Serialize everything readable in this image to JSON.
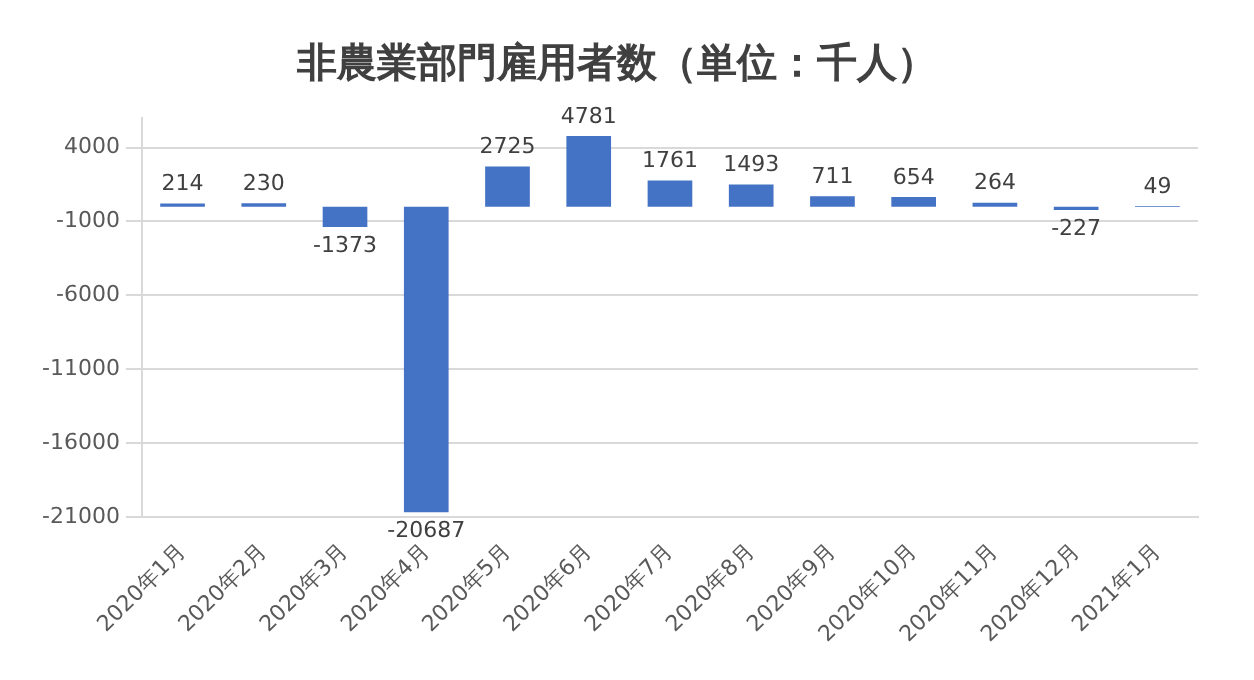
{
  "chart_data": {
    "type": "bar",
    "title": "非農業部門雇用者数（単位：千人）",
    "categories": [
      "2020年1月",
      "2020年2月",
      "2020年3月",
      "2020年4月",
      "2020年5月",
      "2020年6月",
      "2020年7月",
      "2020年8月",
      "2020年9月",
      "2020年10月",
      "2020年11月",
      "2020年12月",
      "2021年1月"
    ],
    "values": [
      214,
      230,
      -1373,
      -20687,
      2725,
      4781,
      1761,
      1493,
      711,
      654,
      264,
      -227,
      49
    ],
    "color": "#4472c4",
    "ylim": [
      -21000,
      6000
    ],
    "yticks": [
      -21000,
      -16000,
      -11000,
      -6000,
      -1000,
      4000
    ],
    "grid": "y",
    "legend": false,
    "data_labels": true
  }
}
